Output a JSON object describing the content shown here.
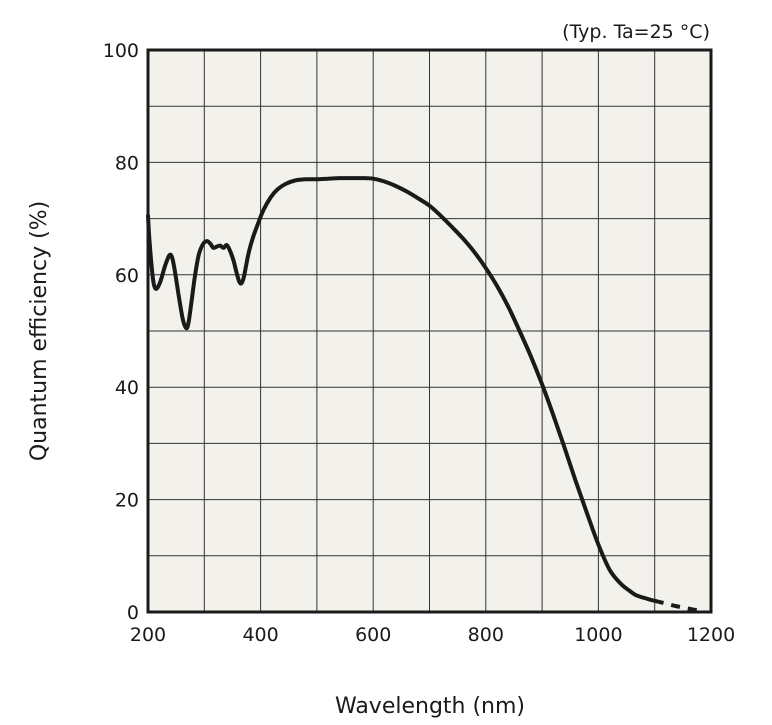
{
  "chart_data": {
    "type": "line",
    "annotation": "(Typ. Ta=25 °C)",
    "xlabel": "Wavelength (nm)",
    "ylabel": "Quantum efficiency (%)",
    "xlim": [
      200,
      1200
    ],
    "ylim": [
      0,
      100
    ],
    "x_ticks": [
      "200",
      "400",
      "600",
      "800",
      "1000",
      "1200"
    ],
    "y_ticks": [
      "0",
      "20",
      "40",
      "60",
      "80",
      "100"
    ],
    "grid": true,
    "background_color": "#f2f1ec",
    "line_color": "#1a1a1a",
    "series": [
      {
        "line_style": "solid",
        "x": [
          200,
          202,
          206,
          210,
          215,
          222,
          230,
          238,
          243,
          248,
          255,
          262,
          268,
          272,
          277,
          283,
          290,
          298,
          305,
          311,
          316,
          322,
          328,
          334,
          340,
          346,
          352,
          357,
          362,
          366,
          370,
          374,
          379,
          386,
          395,
          405,
          418,
          430,
          445,
          462,
          480,
          500,
          520,
          540,
          560,
          580,
          600,
          620,
          640,
          660,
          680,
          700,
          720,
          740,
          760,
          780,
          800,
          820,
          840,
          860,
          880,
          900,
          920,
          940,
          960,
          980,
          1000,
          1020,
          1040,
          1055,
          1065,
          1075,
          1085,
          1095,
          1100
        ],
        "y": [
          70.5,
          67,
          62,
          58.5,
          57.5,
          58.8,
          61.5,
          63.5,
          63,
          60.5,
          56,
          52,
          50.5,
          51.5,
          55,
          59.5,
          63.5,
          65.5,
          66,
          65.5,
          64.8,
          65,
          65.2,
          64.8,
          65.3,
          64.2,
          62.5,
          60.5,
          58.8,
          58.5,
          59.5,
          61.5,
          64,
          66.5,
          69,
          71.5,
          73.8,
          75.2,
          76.2,
          76.8,
          77,
          77,
          77.1,
          77.2,
          77.2,
          77.2,
          77.1,
          76.6,
          75.8,
          74.8,
          73.6,
          72.3,
          70.5,
          68.5,
          66.4,
          64,
          61.2,
          58,
          54.3,
          50,
          45.5,
          40.5,
          35,
          29.2,
          23.2,
          17.5,
          12,
          7.5,
          5,
          3.8,
          3.1,
          2.7,
          2.4,
          2.1,
          2
        ]
      },
      {
        "line_style": "dashed",
        "x": [
          1100,
          1120,
          1140,
          1160,
          1180
        ],
        "y": [
          2,
          1.5,
          1.0,
          0.6,
          0.2
        ]
      }
    ]
  }
}
